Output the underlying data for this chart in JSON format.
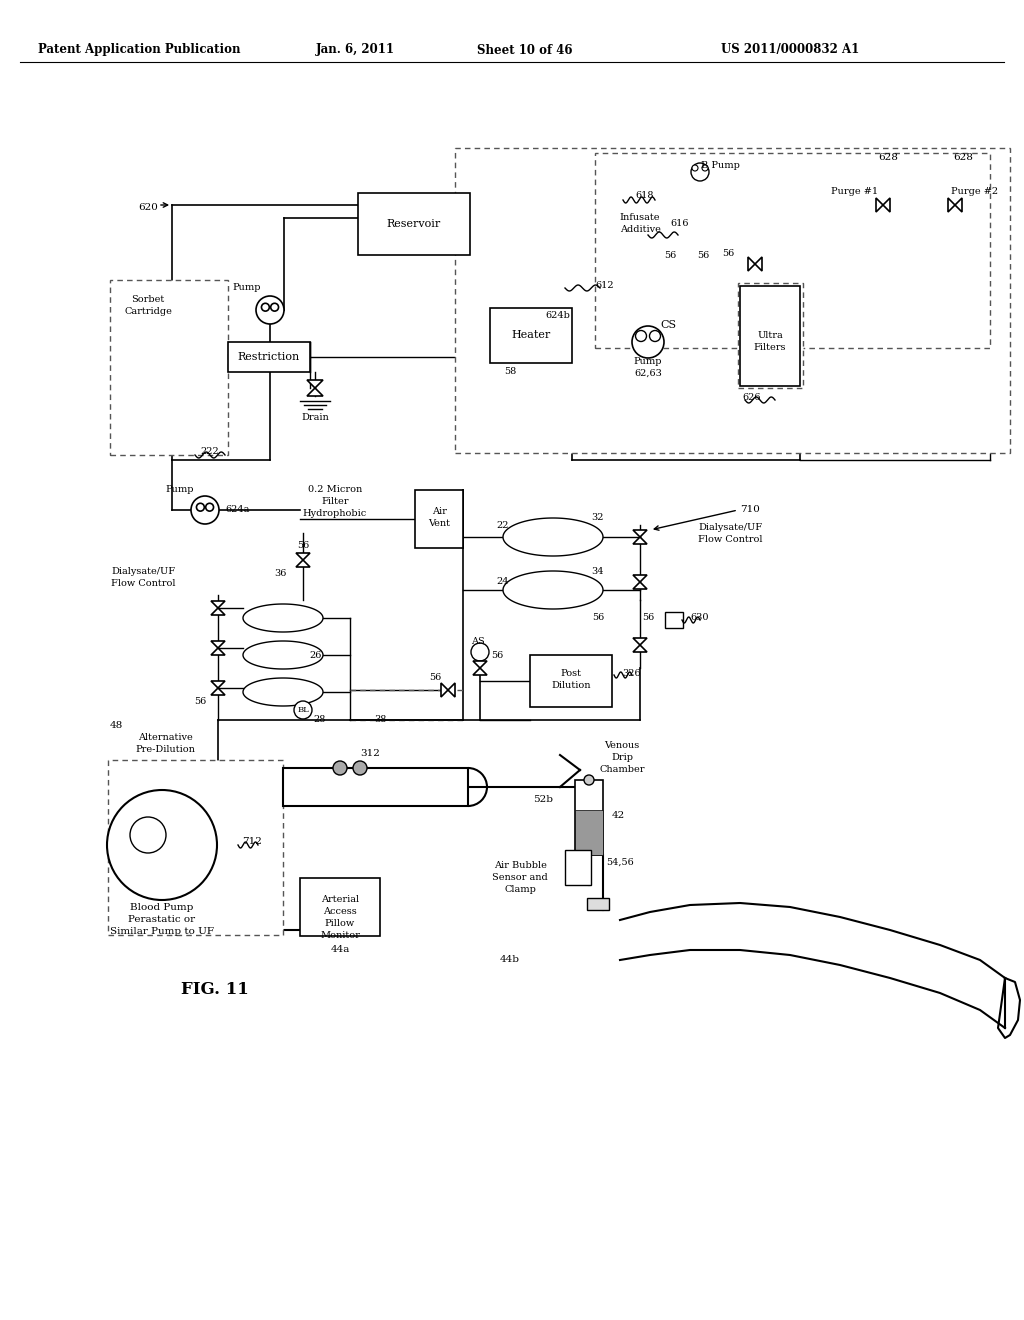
{
  "title_line1": "Patent Application Publication",
  "title_line2": "Jan. 6, 2011",
  "title_line3": "Sheet 10 of 46",
  "title_line4": "US 2011/0000832 A1",
  "fig_label": "FIG. 11",
  "background_color": "#ffffff",
  "line_color": "#000000"
}
